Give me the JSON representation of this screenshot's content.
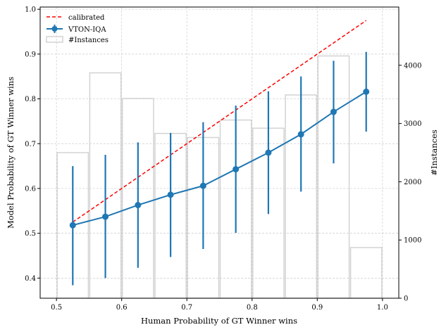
{
  "chart_data": {
    "type": "line",
    "xlabel": "Human Probability of GT Winner wins",
    "ylabel": "Model Probability of GT Winner wins",
    "y2label": "#Instances",
    "xlim": [
      0.475,
      1.025
    ],
    "ylim": [
      0.355,
      1.005
    ],
    "y2lim": [
      0,
      5000
    ],
    "xticks": [
      0.5,
      0.6,
      0.7,
      0.8,
      0.9,
      1.0
    ],
    "xtick_labels": [
      "0.5",
      "0.6",
      "0.7",
      "0.8",
      "0.9",
      "1.0"
    ],
    "yticks": [
      0.4,
      0.5,
      0.6,
      0.7,
      0.8,
      0.9,
      1.0
    ],
    "ytick_labels": [
      "0.4",
      "0.5",
      "0.6",
      "0.7",
      "0.8",
      "0.9",
      "1.0"
    ],
    "y2ticks": [
      0,
      1000,
      2000,
      3000,
      4000
    ],
    "y2tick_labels": [
      "0",
      "1000",
      "2000",
      "3000",
      "4000"
    ],
    "grid": true,
    "legend_position": "upper-left",
    "legend": [
      "calibrated",
      "VTON-IQA",
      "#Instances"
    ],
    "series": [
      {
        "name": "calibrated",
        "style": "dashed",
        "color": "#ff0000",
        "x": [
          0.525,
          0.975
        ],
        "y": [
          0.525,
          0.975
        ]
      },
      {
        "name": "VTON-IQA",
        "style": "line-marker-errorbar",
        "color": "#1f77b4",
        "x": [
          0.525,
          0.575,
          0.625,
          0.675,
          0.725,
          0.775,
          0.825,
          0.875,
          0.925,
          0.975
        ],
        "y": [
          0.518,
          0.537,
          0.563,
          0.586,
          0.606,
          0.643,
          0.68,
          0.721,
          0.771,
          0.816
        ],
        "err_low": [
          0.384,
          0.4,
          0.423,
          0.447,
          0.465,
          0.501,
          0.543,
          0.593,
          0.656,
          0.727
        ],
        "err_high": [
          0.65,
          0.675,
          0.703,
          0.724,
          0.748,
          0.785,
          0.817,
          0.85,
          0.885,
          0.905
        ]
      },
      {
        "name": "#Instances",
        "type": "histogram",
        "axis": "right",
        "color": "#d3d3d3",
        "bin_edges": [
          0.5,
          0.55,
          0.6,
          0.65,
          0.7,
          0.75,
          0.8,
          0.85,
          0.9,
          0.95,
          1.0
        ],
        "values": [
          2500,
          3870,
          3430,
          2830,
          2760,
          3060,
          2920,
          3490,
          4160,
          870
        ]
      }
    ]
  }
}
